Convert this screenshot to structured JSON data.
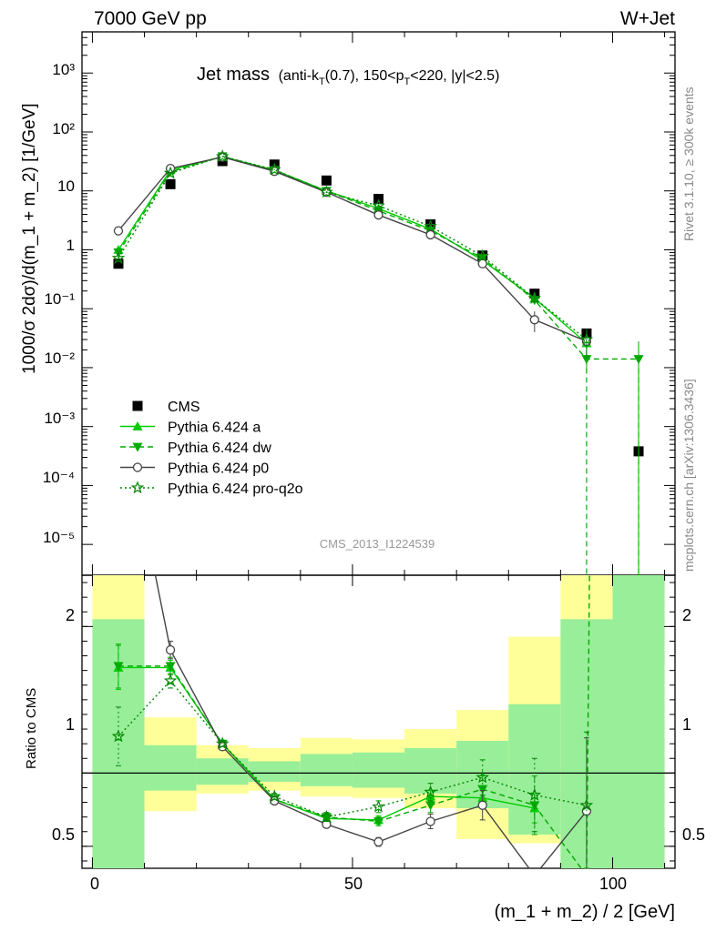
{
  "header": {
    "left": "7000 GeV pp",
    "right": "W+Jet"
  },
  "title": {
    "main": "Jet mass",
    "sub": "(anti-k",
    "sub_T": "T",
    "sub_rest": "(0.7), 150<p",
    "sub_T2": "T",
    "sub_end": "<220, |y|<2.5)"
  },
  "side_labels": {
    "rivet": "Rivet 3.1.10, ≥ 300k events",
    "mcplots": "mcplots.cern.ch [arXiv:1306.3436]"
  },
  "watermark": "CMS_2013_I1224539",
  "axes": {
    "ylabel_main": "1000/σ 2dσ)/d(m_1 + m_2) [1/GeV]",
    "ylabel_ratio": "Ratio to CMS",
    "xlabel": "(m_1 + m_2) / 2 [GeV]",
    "main_ytick_labels": [
      "10⁻⁵",
      "10⁻⁴",
      "10⁻³",
      "10⁻²",
      "10⁻¹",
      "1",
      "10",
      "10²",
      "10³"
    ],
    "ratio_ytick_labels": [
      "0.5",
      "1",
      "2"
    ],
    "xtick_labels": [
      "0",
      "50",
      "100"
    ]
  },
  "chart_data": {
    "type": "line",
    "xlim": [
      -2,
      112
    ],
    "main_ylim": [
      3e-06,
      5000
    ],
    "main_yscale": "log",
    "ratio_ylim": [
      0.35,
      2.35
    ],
    "x": [
      5,
      15,
      25,
      35,
      45,
      55,
      65,
      75,
      85,
      95,
      105
    ],
    "bin_edges": [
      0,
      10,
      20,
      30,
      40,
      50,
      60,
      70,
      80,
      90,
      100,
      110
    ],
    "series": [
      {
        "name": "CMS",
        "color": "#000000",
        "marker": "square",
        "dash": "",
        "values": [
          0.58,
          13,
          32,
          28,
          15,
          7.3,
          2.7,
          0.8,
          0.18,
          0.038,
          0.00038
        ],
        "errors": [
          0.05,
          0.6,
          1.0,
          0.8,
          0.5,
          0.3,
          0.12,
          0.04,
          0.012,
          0.004,
          0.0001
        ]
      },
      {
        "name": "Pythia 6.424 a",
        "color": "#00cc00",
        "marker": "triangle-up",
        "dash": "",
        "values": [
          1.0,
          22.5,
          38,
          22.5,
          10,
          5.0,
          2.25,
          0.66,
          0.15,
          0.026,
          null
        ],
        "errors": [
          0.08,
          1,
          1,
          0.5,
          0.3,
          0.2,
          0.1,
          0.04,
          0.02,
          0.01,
          null
        ],
        "ratio": [
          1.72,
          1.72,
          1.2,
          0.82,
          0.69,
          0.68,
          0.84,
          0.83,
          0.76,
          null,
          null
        ],
        "ratio_err": [
          0.15,
          0.05,
          0.02,
          0.02,
          0.03,
          0.03,
          0.04,
          0.06,
          0.1,
          null,
          null
        ]
      },
      {
        "name": "Pythia 6.424 dw",
        "color": "#00aa00",
        "marker": "triangle-down",
        "dash": "6,4",
        "values": [
          0.9,
          21,
          38.5,
          22.5,
          10,
          4.6,
          2.1,
          0.72,
          0.14,
          0.014,
          0.014
        ],
        "errors": [
          0.08,
          1,
          1,
          0.5,
          0.3,
          0.2,
          0.1,
          0.05,
          0.02,
          0.006,
          0.014
        ],
        "ratio": [
          1.73,
          1.73,
          1.2,
          0.82,
          0.7,
          0.67,
          0.78,
          0.89,
          0.78,
          0.3,
          37
        ],
        "ratio_err": [
          0.15,
          0.06,
          0.02,
          0.02,
          0.03,
          0.03,
          0.05,
          0.09,
          0.2,
          0.2,
          37
        ]
      },
      {
        "name": "Pythia 6.424 p0",
        "color": "#444444",
        "marker": "circle-open",
        "dash": "",
        "values": [
          2.1,
          24,
          37.5,
          21.5,
          9.5,
          3.9,
          1.8,
          0.58,
          0.065,
          0.028,
          null
        ],
        "errors": [
          0.1,
          1,
          1,
          0.5,
          0.3,
          0.15,
          0.08,
          0.04,
          0.025,
          0.012,
          null
        ],
        "ratio": [
          3.6,
          1.84,
          1.18,
          0.81,
          0.65,
          0.53,
          0.67,
          0.78,
          0.3,
          0.74,
          null
        ],
        "ratio_err": [
          0.2,
          0.06,
          0.02,
          0.02,
          0.02,
          0.03,
          0.05,
          0.1,
          0.15,
          0.5,
          null
        ]
      },
      {
        "name": "Pythia 6.424 pro-q2o",
        "color": "#008800",
        "marker": "star-open",
        "dash": "2,3",
        "values": [
          0.72,
          20,
          38.5,
          23,
          9.5,
          5.6,
          2.5,
          0.78,
          0.15,
          0.03,
          null
        ],
        "errors": [
          0.06,
          1,
          1,
          0.5,
          0.3,
          0.2,
          0.1,
          0.05,
          0.03,
          0.015,
          null
        ],
        "ratio": [
          1.25,
          1.63,
          1.2,
          0.84,
          0.7,
          0.77,
          0.87,
          0.97,
          0.85,
          0.78,
          null
        ],
        "ratio_err": [
          0.2,
          0.05,
          0.02,
          0.02,
          0.03,
          0.04,
          0.06,
          0.12,
          0.25,
          0.5,
          null
        ]
      }
    ],
    "bands": {
      "yellow_lo": [
        0.35,
        0.74,
        0.86,
        0.88,
        0.84,
        0.83,
        0.76,
        0.55,
        0.52,
        0.35,
        0.35
      ],
      "yellow_hi": [
        2.35,
        1.38,
        1.19,
        1.17,
        1.24,
        1.23,
        1.3,
        1.43,
        1.93,
        2.35,
        2.35
      ],
      "green_lo": [
        0.35,
        0.88,
        0.92,
        0.94,
        0.91,
        0.9,
        0.86,
        0.76,
        0.58,
        0.35,
        0.35
      ],
      "green_hi": [
        2.05,
        1.19,
        1.1,
        1.08,
        1.13,
        1.14,
        1.17,
        1.22,
        1.47,
        2.05,
        2.35
      ]
    }
  }
}
